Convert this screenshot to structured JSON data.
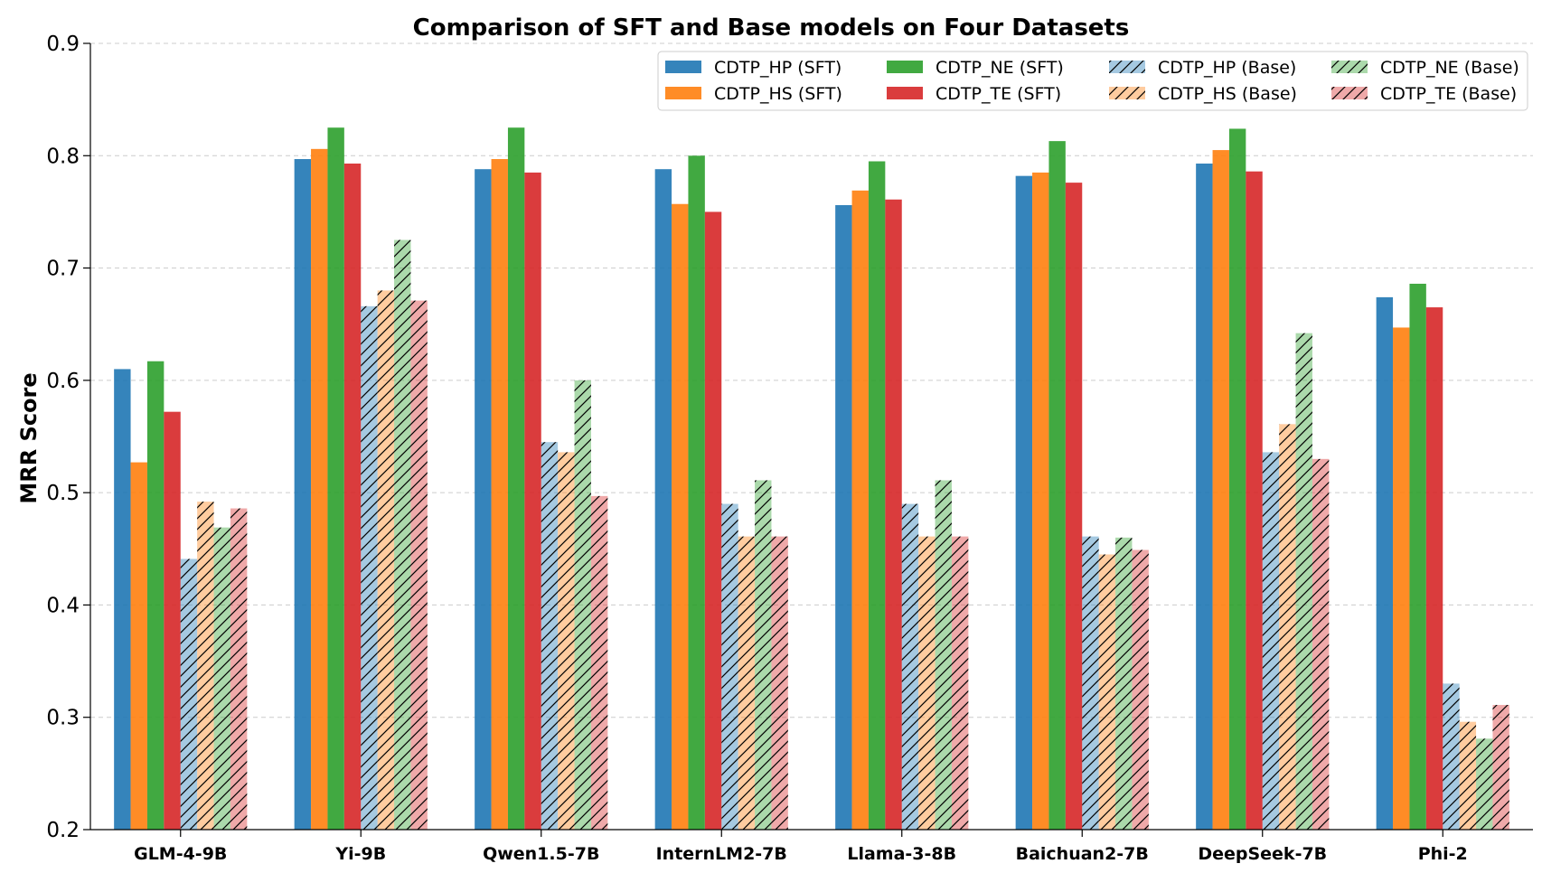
{
  "chart_data": {
    "type": "bar",
    "title": "Comparison of SFT and Base models on Four Datasets",
    "xlabel": "",
    "ylabel": "MRR Score",
    "ylim": [
      0.2,
      0.9
    ],
    "yticks": [
      "0.2",
      "0.3",
      "0.4",
      "0.5",
      "0.6",
      "0.7",
      "0.8",
      "0.9"
    ],
    "grid": true,
    "legend_position": "top-right",
    "categories": [
      "GLM-4-9B",
      "Yi-9B",
      "Qwen1.5-7B",
      "InternLM2-7B",
      "Llama-3-8B",
      "Baichuan2-7B",
      "DeepSeek-7B",
      "Phi-2"
    ],
    "series": [
      {
        "name": "CDTP_HP (SFT)",
        "color": "#1f77b4",
        "hatch": false,
        "values": [
          0.61,
          0.797,
          0.788,
          0.788,
          0.756,
          0.782,
          0.793,
          0.674
        ]
      },
      {
        "name": "CDTP_HS (SFT)",
        "color": "#ff7f0e",
        "hatch": false,
        "values": [
          0.527,
          0.806,
          0.797,
          0.757,
          0.769,
          0.785,
          0.805,
          0.647
        ]
      },
      {
        "name": "CDTP_NE (SFT)",
        "color": "#2ca02c",
        "hatch": false,
        "values": [
          0.617,
          0.825,
          0.825,
          0.8,
          0.795,
          0.813,
          0.824,
          0.686
        ]
      },
      {
        "name": "CDTP_TE (SFT)",
        "color": "#d62728",
        "hatch": false,
        "values": [
          0.572,
          0.793,
          0.785,
          0.75,
          0.761,
          0.776,
          0.786,
          0.665
        ]
      },
      {
        "name": "CDTP_HP (Base)",
        "color": "#1f77b4",
        "hatch": true,
        "values": [
          0.441,
          0.666,
          0.545,
          0.49,
          0.49,
          0.461,
          0.536,
          0.33
        ]
      },
      {
        "name": "CDTP_HS (Base)",
        "color": "#ff7f0e",
        "hatch": true,
        "values": [
          0.492,
          0.68,
          0.536,
          0.461,
          0.461,
          0.445,
          0.561,
          0.296
        ]
      },
      {
        "name": "CDTP_NE (Base)",
        "color": "#2ca02c",
        "hatch": true,
        "values": [
          0.469,
          0.725,
          0.6,
          0.511,
          0.511,
          0.46,
          0.642,
          0.281
        ]
      },
      {
        "name": "CDTP_TE (Base)",
        "color": "#d62728",
        "hatch": true,
        "values": [
          0.486,
          0.671,
          0.497,
          0.461,
          0.461,
          0.449,
          0.53,
          0.311
        ]
      }
    ]
  }
}
